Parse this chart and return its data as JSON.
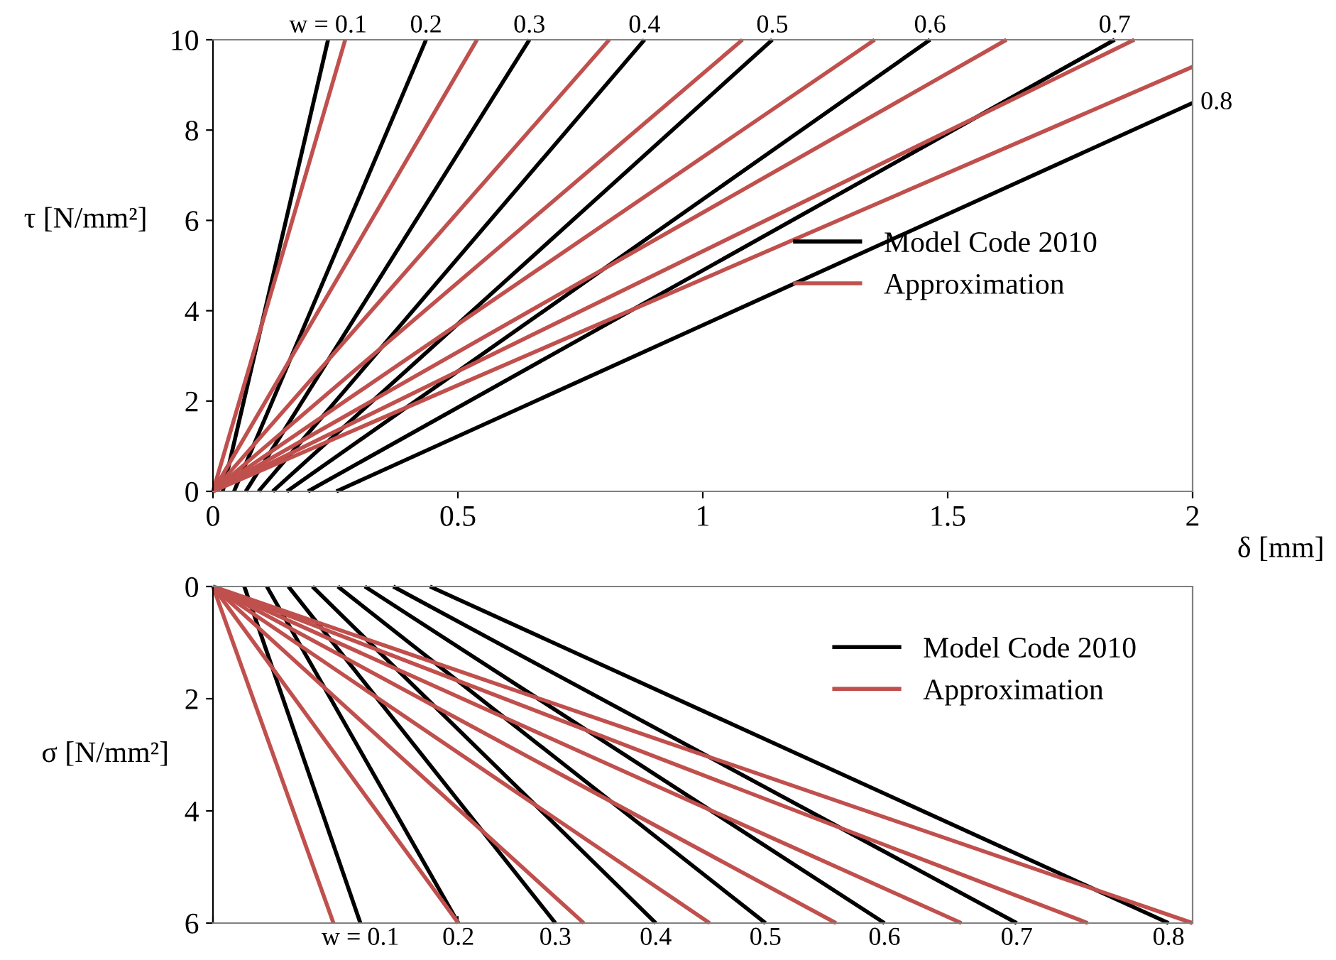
{
  "chart_data": [
    {
      "type": "line",
      "xlabel": "δ [mm]",
      "ylabel": "τ [N/mm²]",
      "xlim": [
        0,
        2
      ],
      "xticks": [
        0,
        0.5,
        1,
        1.5,
        2
      ],
      "ylim": [
        0,
        10
      ],
      "yticks": [
        0,
        2,
        4,
        6,
        8,
        10
      ],
      "legend": "right",
      "grid": false,
      "series": [
        {
          "name": "Model Code 2010",
          "color": "#000000",
          "x": [
            0.02,
            0.235
          ],
          "values": [
            0,
            10
          ]
        },
        {
          "color": "#000000",
          "x": [
            0.043,
            0.435
          ],
          "values": [
            0,
            10
          ]
        },
        {
          "color": "#000000",
          "x": [
            0.067,
            0.646
          ],
          "values": [
            0,
            10
          ]
        },
        {
          "color": "#000000",
          "x": [
            0.093,
            0.881
          ],
          "values": [
            0,
            10
          ]
        },
        {
          "color": "#000000",
          "x": [
            0.122,
            1.142
          ],
          "values": [
            0,
            10
          ]
        },
        {
          "color": "#000000",
          "x": [
            0.151,
            1.464
          ],
          "values": [
            0,
            10
          ]
        },
        {
          "color": "#000000",
          "x": [
            0.194,
            1.841
          ],
          "values": [
            0,
            10
          ]
        },
        {
          "color": "#000000",
          "x": [
            0.252,
            2
          ],
          "values": [
            0,
            8.6
          ]
        },
        {
          "name": "Approximation",
          "color": "#c0504d",
          "x": [
            0,
            0.27
          ],
          "values": [
            0,
            10
          ]
        },
        {
          "color": "#c0504d",
          "x": [
            0,
            0.539
          ],
          "values": [
            0,
            10
          ]
        },
        {
          "color": "#c0504d",
          "x": [
            0,
            0.809
          ],
          "values": [
            0,
            10
          ]
        },
        {
          "color": "#c0504d",
          "x": [
            0,
            1.081
          ],
          "values": [
            0,
            10
          ]
        },
        {
          "color": "#c0504d",
          "x": [
            0,
            1.351
          ],
          "values": [
            0,
            10
          ]
        },
        {
          "color": "#c0504d",
          "x": [
            0,
            1.62
          ],
          "values": [
            0,
            10
          ]
        },
        {
          "color": "#c0504d",
          "x": [
            0,
            1.881
          ],
          "values": [
            0,
            10
          ]
        },
        {
          "color": "#c0504d",
          "x": [
            0,
            2
          ],
          "values": [
            0,
            9.4
          ]
        }
      ],
      "annotations": [
        {
          "text": "w = 0.1",
          "x": 0.235,
          "y": 10
        },
        {
          "text": "0.2",
          "x": 0.435,
          "y": 10
        },
        {
          "text": "0.3",
          "x": 0.646,
          "y": 10
        },
        {
          "text": "0.4",
          "x": 0.881,
          "y": 10
        },
        {
          "text": "0.5",
          "x": 1.142,
          "y": 10
        },
        {
          "text": "0.6",
          "x": 1.464,
          "y": 10
        },
        {
          "text": "0.7",
          "x": 1.841,
          "y": 10
        },
        {
          "text": "0.8",
          "x": 2,
          "y": 8.6
        }
      ]
    },
    {
      "type": "line",
      "ylabel": "σ [N/mm²]",
      "xlim": [
        0,
        2
      ],
      "xticks": [
        {
          "value": 0,
          "label": null
        },
        {
          "value": 0.5,
          "label": null
        }
      ],
      "ylim": [
        6,
        0
      ],
      "yticks": [
        0,
        2,
        4,
        6
      ],
      "tick_labels": "y",
      "legend": "top right",
      "grid": false,
      "series": [
        {
          "name": "Model Code 2010",
          "color": "#000000",
          "x": [
            0.064,
            0.301
          ],
          "values": [
            0,
            6
          ]
        },
        {
          "color": "#000000",
          "x": [
            0.11,
            0.501
          ],
          "values": [
            0,
            6
          ]
        },
        {
          "color": "#000000",
          "x": [
            0.154,
            0.699
          ],
          "values": [
            0,
            6
          ]
        },
        {
          "color": "#000000",
          "x": [
            0.203,
            0.904
          ],
          "values": [
            0,
            6
          ]
        },
        {
          "color": "#000000",
          "x": [
            0.255,
            1.128
          ],
          "values": [
            0,
            6
          ]
        },
        {
          "color": "#000000",
          "x": [
            0.31,
            1.371
          ],
          "values": [
            0,
            6
          ]
        },
        {
          "color": "#000000",
          "x": [
            0.368,
            1.641
          ],
          "values": [
            0,
            6
          ]
        },
        {
          "color": "#000000",
          "x": [
            0.443,
            1.951
          ],
          "values": [
            0,
            6
          ]
        },
        {
          "name": "Approximation",
          "color": "#c0504d",
          "x": [
            0,
            0.246
          ],
          "values": [
            0,
            6
          ]
        },
        {
          "color": "#c0504d",
          "x": [
            0,
            0.501
          ],
          "values": [
            0,
            6
          ]
        },
        {
          "color": "#c0504d",
          "x": [
            0,
            0.757
          ],
          "values": [
            0,
            6
          ]
        },
        {
          "color": "#c0504d",
          "x": [
            0,
            1.014
          ],
          "values": [
            0,
            6
          ]
        },
        {
          "color": "#c0504d",
          "x": [
            0,
            1.272
          ],
          "values": [
            0,
            6
          ]
        },
        {
          "color": "#c0504d",
          "x": [
            0,
            1.528
          ],
          "values": [
            0,
            6
          ]
        },
        {
          "color": "#c0504d",
          "x": [
            0,
            1.786
          ],
          "values": [
            0,
            6
          ]
        },
        {
          "color": "#c0504d",
          "x": [
            0,
            2
          ],
          "values": [
            0,
            6
          ]
        }
      ],
      "annotations": [
        {
          "text": "w = 0.1",
          "x": 0.301,
          "y": 6
        },
        {
          "text": "0.2",
          "x": 0.501,
          "y": 6
        },
        {
          "text": "0.3",
          "x": 0.699,
          "y": 6
        },
        {
          "text": "0.4",
          "x": 0.904,
          "y": 6
        },
        {
          "text": "0.5",
          "x": 1.128,
          "y": 6
        },
        {
          "text": "0.6",
          "x": 1.371,
          "y": 6
        },
        {
          "text": "0.7",
          "x": 1.641,
          "y": 6
        },
        {
          "text": "0.8",
          "x": 1.951,
          "y": 6
        }
      ]
    }
  ]
}
